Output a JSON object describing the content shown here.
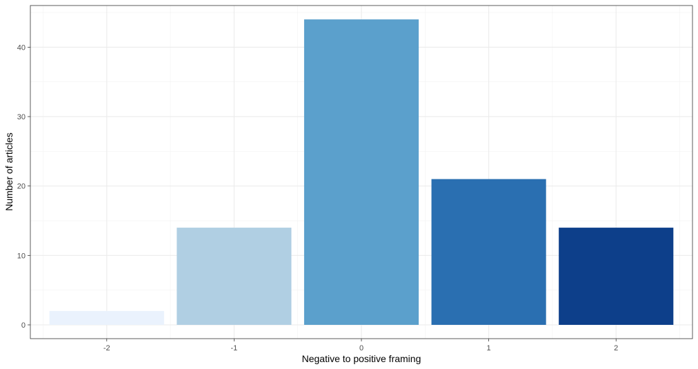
{
  "chart_data": {
    "type": "bar",
    "title": "",
    "xlabel": "Negative to positive framing",
    "ylabel": "Number of articles",
    "categories": [
      "-2",
      "-1",
      "0",
      "1",
      "2"
    ],
    "values": [
      2,
      14,
      44,
      21,
      14
    ],
    "colors": [
      "#EAF2FD",
      "#B0CFE3",
      "#5BA0CC",
      "#2A6FB1",
      "#0D3F8A"
    ],
    "y_ticks": [
      0,
      10,
      20,
      30,
      40
    ],
    "ylim": [
      0,
      46
    ],
    "grid": true,
    "legend": "none"
  }
}
